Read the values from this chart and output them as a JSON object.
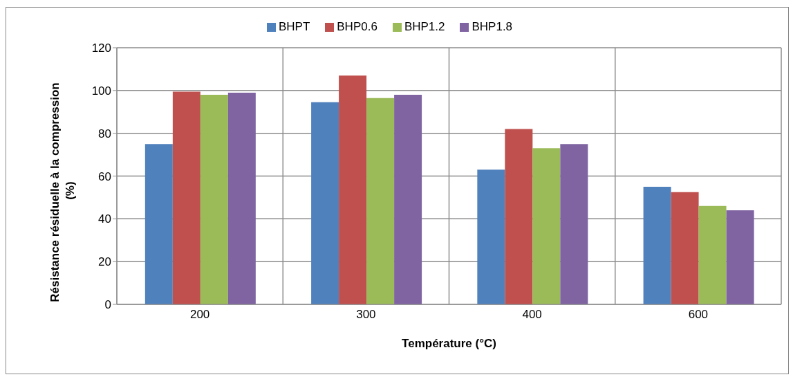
{
  "chart_data": {
    "type": "bar",
    "xlabel": "Température (°C)",
    "ylabel": "Résistance résiduelle à la compression  (%)",
    "categories": [
      "200",
      "300",
      "400",
      "600"
    ],
    "series": [
      {
        "name": "BHPT",
        "color": "#4f81bd",
        "values": [
          75,
          94.5,
          63,
          55
        ]
      },
      {
        "name": "BHP0.6",
        "color": "#c0504d",
        "values": [
          99.5,
          107,
          82,
          52.5
        ]
      },
      {
        "name": "BHP1.2",
        "color": "#9bbb59",
        "values": [
          98,
          96.5,
          73,
          46
        ]
      },
      {
        "name": "BHP1.8",
        "color": "#8064a2",
        "values": [
          99,
          98,
          75,
          44
        ]
      }
    ],
    "ylim": [
      0,
      120
    ],
    "yticks": [
      0,
      20,
      40,
      60,
      80,
      100,
      120
    ],
    "grid": true,
    "legend": "top"
  }
}
